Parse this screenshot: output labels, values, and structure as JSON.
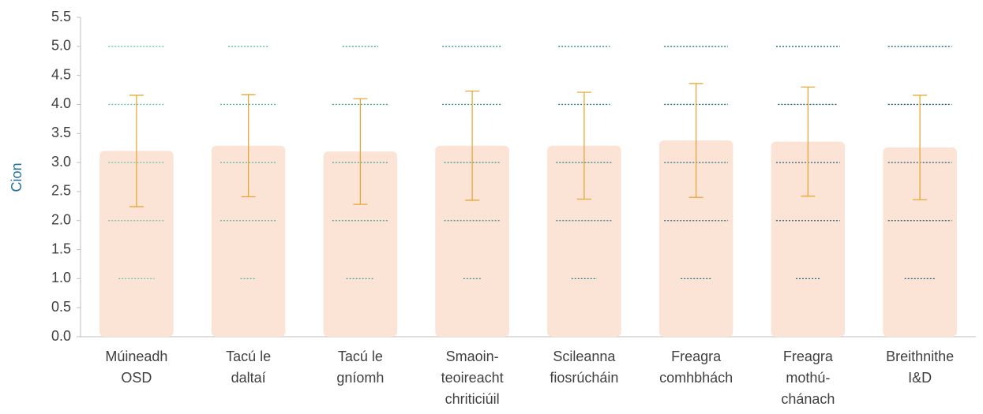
{
  "chart_data": {
    "type": "bar",
    "ylabel": "Cion",
    "categories": [
      [
        "Múineadh",
        "OSD"
      ],
      [
        "Tacú le",
        "daltaí"
      ],
      [
        "Tacú le",
        "gníomh"
      ],
      [
        "Smaoin-",
        "teoireacht",
        "chriticiúil"
      ],
      [
        "Scileanna",
        "fiosrúcháin"
      ],
      [
        "Freagra",
        "comhbhách"
      ],
      [
        "Freagra",
        "mothú-",
        "chánach"
      ],
      [
        "Breithnithe",
        "I&D"
      ]
    ],
    "values": [
      3.2,
      3.29,
      3.19,
      3.29,
      3.29,
      3.38,
      3.36,
      3.26
    ],
    "errors": [
      0.96,
      0.88,
      0.91,
      0.94,
      0.92,
      0.98,
      0.94,
      0.9
    ],
    "color": "#fbe3d6",
    "error_color": "#e8a838",
    "levels": [
      1,
      2,
      3,
      4,
      5
    ],
    "level_spread": [
      [
        56,
        88,
        88,
        88,
        88
      ],
      [
        25,
        88,
        88,
        88,
        63
      ],
      [
        44,
        88,
        88,
        88,
        56
      ],
      [
        28,
        88,
        88,
        94,
        94
      ],
      [
        40,
        88,
        88,
        81,
        81
      ],
      [
        48,
        100,
        100,
        100,
        100
      ],
      [
        38,
        100,
        100,
        94,
        100
      ],
      [
        48,
        100,
        100,
        100,
        100
      ]
    ],
    "level_colors": [
      "#63c9a3",
      "#52b89c",
      "#42a594",
      "#35928c",
      "#2a8085",
      "#226f7d",
      "#1f6577",
      "#1d5c72"
    ],
    "ylim": [
      0,
      5.5
    ],
    "yticks": [
      {
        "value": 0,
        "label": "0.0"
      },
      0.5,
      {
        "value": 1,
        "label": "1.0"
      },
      1.5,
      {
        "value": 2,
        "label": "2.0"
      },
      2.5,
      {
        "value": 3,
        "label": "3.0"
      },
      3.5,
      {
        "value": 4,
        "label": "4.0"
      },
      4.5,
      {
        "value": 5,
        "label": "5.0"
      },
      5.5
    ]
  }
}
